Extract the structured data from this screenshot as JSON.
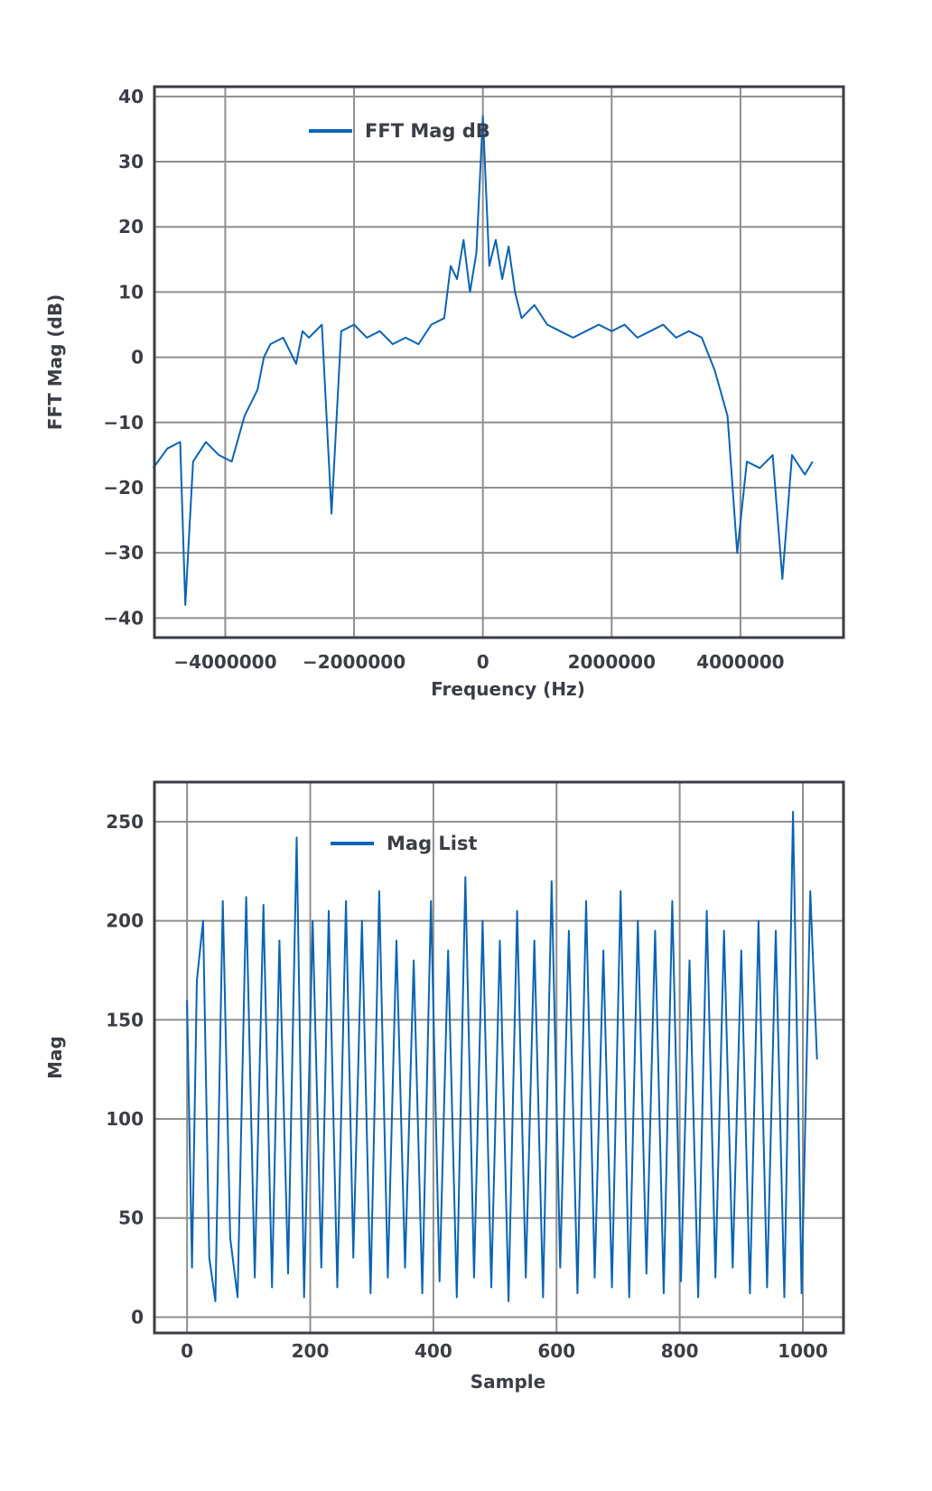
{
  "colors": {
    "series": "#0a64b4",
    "grid": "#8e8e8e",
    "frame": "#3a3d44",
    "text": "#3b3e45"
  },
  "chart_data": [
    {
      "type": "line",
      "legend": "FFT Mag dB",
      "xlabel": "Frequency (Hz)",
      "ylabel": "FFT Mag (dB)",
      "xlim": [
        -5100000,
        5600000
      ],
      "ylim": [
        -43,
        41.5
      ],
      "xticks": [
        -4000000,
        -2000000,
        0,
        2000000,
        4000000
      ],
      "xtick_labels": [
        "−4000000",
        "−2000000",
        "0",
        "2000000",
        "4000000"
      ],
      "yticks": [
        40,
        30,
        20,
        10,
        0,
        -10,
        -20,
        -30,
        -40
      ],
      "ytick_labels": [
        "40",
        "30",
        "20",
        "10",
        "0",
        "−10",
        "−20",
        "−30",
        "−40"
      ],
      "grid": true,
      "legend_position": "top-left",
      "series": [
        {
          "x": [
            -5120000,
            -4900000,
            -4700000,
            -4620000,
            -4500000,
            -4300000,
            -4100000,
            -3900000,
            -3700000,
            -3500000,
            -3400000,
            -3300000,
            -3100000,
            -2900000,
            -2800000,
            -2700000,
            -2500000,
            -2350000,
            -2200000,
            -2000000,
            -1800000,
            -1600000,
            -1400000,
            -1200000,
            -1000000,
            -800000,
            -600000,
            -500000,
            -400000,
            -300000,
            -200000,
            -100000,
            0,
            100000,
            200000,
            300000,
            400000,
            500000,
            600000,
            800000,
            1000000,
            1200000,
            1400000,
            1600000,
            1800000,
            2000000,
            2200000,
            2400000,
            2600000,
            2800000,
            3000000,
            3200000,
            3400000,
            3600000,
            3800000,
            3950000,
            4100000,
            4300000,
            4500000,
            4650000,
            4800000,
            5000000,
            5120000
          ],
          "values": [
            -17,
            -14,
            -13,
            -38,
            -16,
            -13,
            -15,
            -16,
            -9,
            -5,
            0,
            2,
            3,
            -1,
            4,
            3,
            5,
            -24,
            4,
            5,
            3,
            4,
            2,
            3,
            2,
            5,
            6,
            14,
            12,
            18,
            10,
            16,
            37,
            14,
            18,
            12,
            17,
            10,
            6,
            8,
            5,
            4,
            3,
            4,
            5,
            4,
            5,
            3,
            4,
            5,
            3,
            4,
            3,
            -2,
            -9,
            -30,
            -16,
            -17,
            -15,
            -34,
            -15,
            -18,
            -16
          ]
        }
      ]
    },
    {
      "type": "line",
      "legend": "Mag List",
      "xlabel": "Sample",
      "ylabel": "Mag",
      "xlim": [
        -53,
        1066
      ],
      "ylim": [
        -8,
        270
      ],
      "xticks": [
        0,
        200,
        400,
        600,
        800,
        1000
      ],
      "xtick_labels": [
        "0",
        "200",
        "400",
        "600",
        "800",
        "1000"
      ],
      "yticks": [
        250,
        200,
        150,
        100,
        50,
        0
      ],
      "ytick_labels": [
        "250",
        "200",
        "150",
        "100",
        "50",
        "0"
      ],
      "grid": true,
      "legend_position": "top-left",
      "series": [
        {
          "x": [
            0,
            8,
            16,
            26,
            36,
            46,
            58,
            70,
            82,
            96,
            110,
            124,
            138,
            150,
            164,
            178,
            190,
            204,
            218,
            230,
            244,
            258,
            270,
            284,
            298,
            312,
            326,
            340,
            354,
            368,
            382,
            396,
            410,
            424,
            438,
            452,
            466,
            480,
            494,
            508,
            522,
            536,
            550,
            564,
            578,
            592,
            606,
            620,
            634,
            648,
            662,
            676,
            690,
            704,
            718,
            732,
            746,
            760,
            774,
            788,
            802,
            816,
            830,
            844,
            858,
            872,
            886,
            900,
            914,
            928,
            942,
            956,
            970,
            984,
            998,
            1012,
            1023
          ],
          "values": [
            160,
            25,
            170,
            200,
            30,
            8,
            210,
            40,
            10,
            212,
            20,
            208,
            15,
            190,
            22,
            242,
            10,
            200,
            25,
            205,
            15,
            210,
            30,
            200,
            12,
            215,
            20,
            190,
            25,
            180,
            12,
            210,
            18,
            185,
            10,
            222,
            20,
            200,
            15,
            190,
            8,
            205,
            20,
            190,
            10,
            220,
            25,
            195,
            12,
            210,
            20,
            185,
            15,
            215,
            10,
            200,
            22,
            195,
            12,
            210,
            18,
            180,
            10,
            205,
            20,
            195,
            25,
            185,
            12,
            200,
            15,
            195,
            10,
            255,
            12,
            215,
            130
          ]
        }
      ]
    }
  ]
}
